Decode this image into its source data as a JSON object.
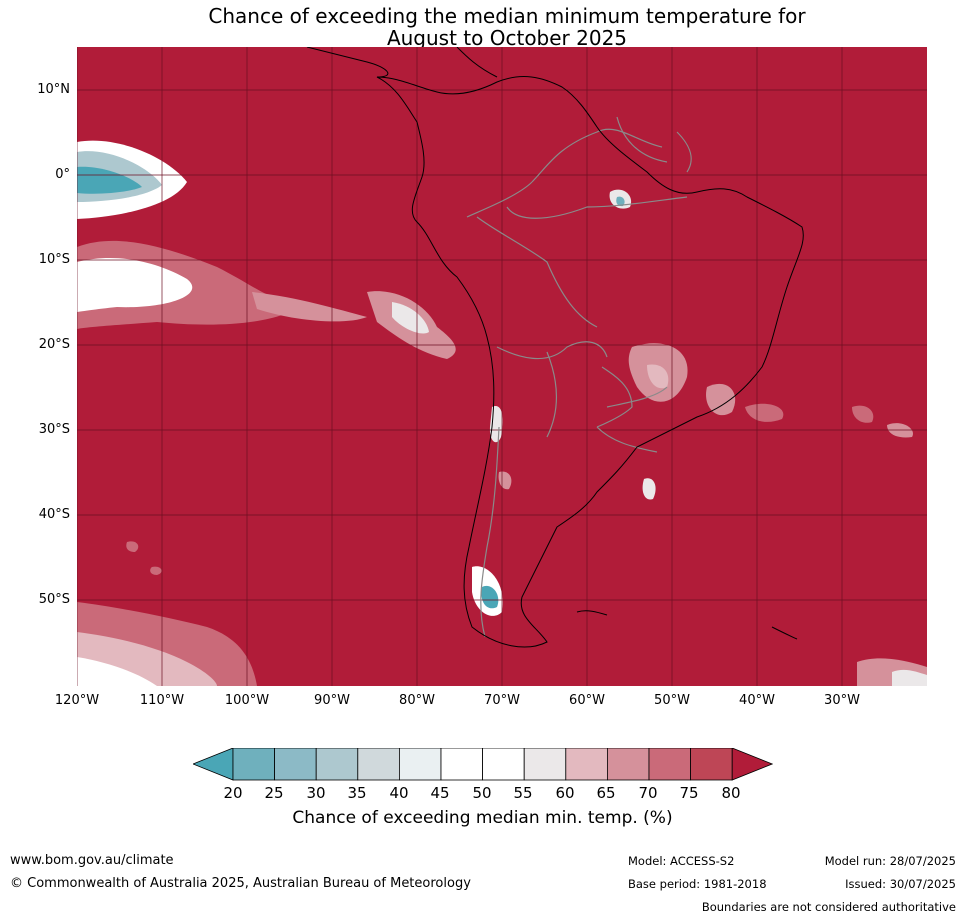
{
  "title": {
    "line1": "Chance of exceeding the median minimum temperature for",
    "line2": "August to October 2025"
  },
  "map": {
    "background_color": "#b11c39",
    "lat_labels": [
      "10°N",
      "0°",
      "10°S",
      "20°S",
      "30°S",
      "40°S",
      "50°S"
    ],
    "lon_labels": [
      "120°W",
      "110°W",
      "100°W",
      "90°W",
      "80°W",
      "70°W",
      "60°W",
      "50°W",
      "40°W",
      "30°W"
    ]
  },
  "legend": {
    "ticks": [
      "20",
      "25",
      "30",
      "35",
      "40",
      "45",
      "50",
      "55",
      "60",
      "65",
      "70",
      "75",
      "80"
    ],
    "colors": [
      "#4aa6b6",
      "#6fb0bd",
      "#8cbac6",
      "#adc8cf",
      "#d0d9dc",
      "#eaf0f2",
      "#ffffff",
      "#ffffff",
      "#ebe8e9",
      "#e3b9bf",
      "#d5919b",
      "#ca6a79",
      "#be4656",
      "#b11c39"
    ],
    "label": "Chance of exceeding median min. temp. (%)"
  },
  "footer": {
    "url": "www.bom.gov.au/climate",
    "copyright": "© Commonwealth of Australia 2025, Australian Bureau of Meteorology",
    "model": "Model: ACCESS-S2",
    "base_period": "Base period: 1981-2018",
    "model_run": "Model run: 28/07/2025",
    "issued": "Issued: 30/07/2025",
    "boundaries_note": "Boundaries are not considered authoritative"
  }
}
